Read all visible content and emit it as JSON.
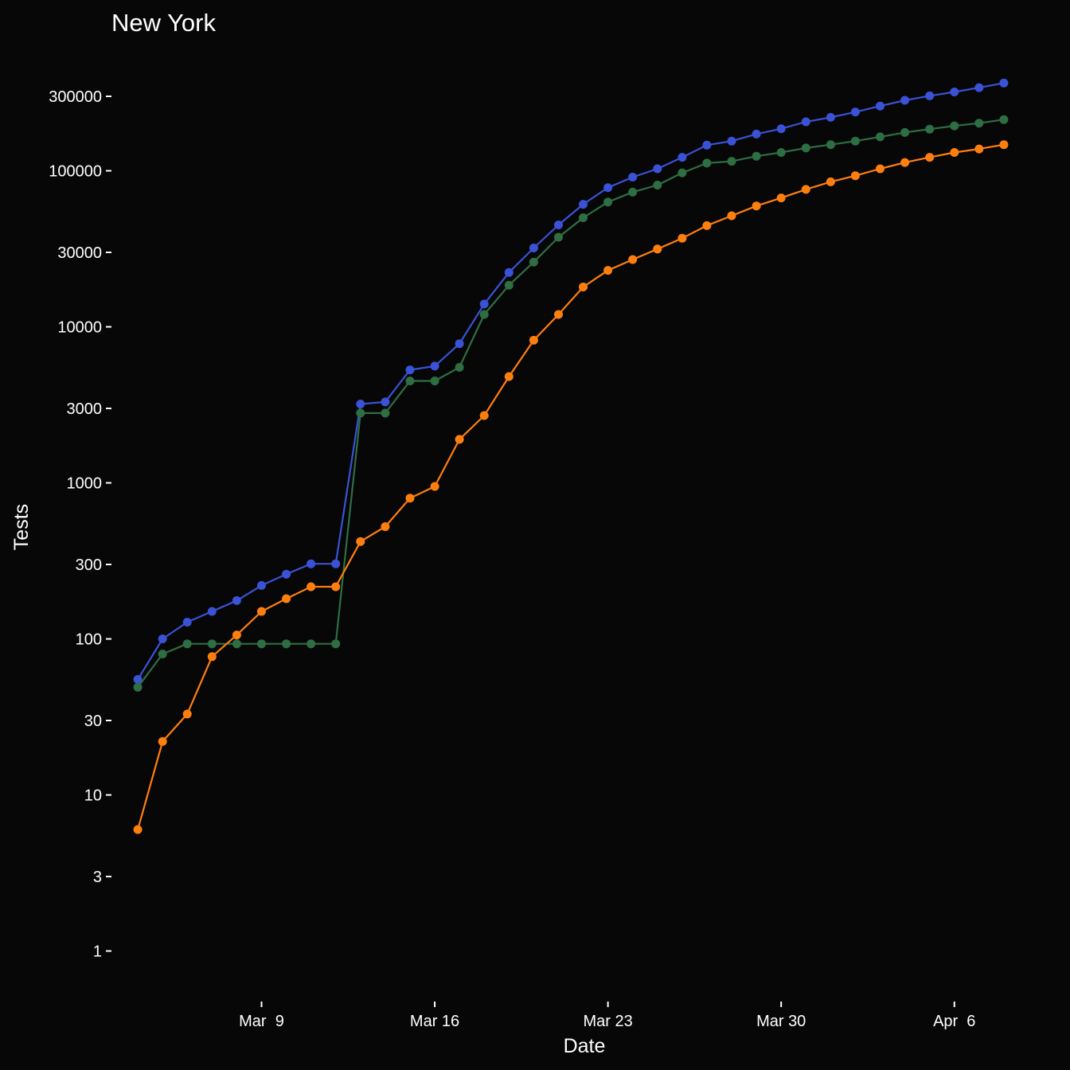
{
  "chart_data": {
    "type": "line",
    "title": "New York",
    "xlabel": "Date",
    "ylabel": "Tests",
    "yscale": "log",
    "ylim": [
      0.6,
      600000
    ],
    "xlim": [
      "2020-03-03",
      "2020-04-09"
    ],
    "y_ticks": [
      {
        "value": 1,
        "label": "1"
      },
      {
        "value": 3,
        "label": "3"
      },
      {
        "value": 10,
        "label": "10"
      },
      {
        "value": 30,
        "label": "30"
      },
      {
        "value": 100,
        "label": "100"
      },
      {
        "value": 300,
        "label": "300"
      },
      {
        "value": 1000,
        "label": "1000"
      },
      {
        "value": 3000,
        "label": "3000"
      },
      {
        "value": 10000,
        "label": "10000"
      },
      {
        "value": 30000,
        "label": "30000"
      },
      {
        "value": 100000,
        "label": "100000"
      },
      {
        "value": 300000,
        "label": "300000"
      }
    ],
    "x_ticks": [
      {
        "value": "2020-03-09",
        "label": "Mar  9"
      },
      {
        "value": "2020-03-16",
        "label": "Mar 16"
      },
      {
        "value": "2020-03-23",
        "label": "Mar 23"
      },
      {
        "value": "2020-03-30",
        "label": "Mar 30"
      },
      {
        "value": "2020-04-06",
        "label": "Apr  6"
      }
    ],
    "grid": false,
    "legend": "none",
    "x": [
      "2020-03-04",
      "2020-03-05",
      "2020-03-06",
      "2020-03-07",
      "2020-03-08",
      "2020-03-09",
      "2020-03-10",
      "2020-03-11",
      "2020-03-12",
      "2020-03-13",
      "2020-03-14",
      "2020-03-15",
      "2020-03-16",
      "2020-03-17",
      "2020-03-18",
      "2020-03-19",
      "2020-03-20",
      "2020-03-21",
      "2020-03-22",
      "2020-03-23",
      "2020-03-24",
      "2020-03-25",
      "2020-03-26",
      "2020-03-27",
      "2020-03-28",
      "2020-03-29",
      "2020-03-30",
      "2020-03-31",
      "2020-04-01",
      "2020-04-02",
      "2020-04-03",
      "2020-04-04",
      "2020-04-05",
      "2020-04-06",
      "2020-04-07",
      "2020-04-08"
    ],
    "series": [
      {
        "color": "#3a52d6",
        "values": [
          55,
          100,
          128,
          150,
          176,
          220,
          260,
          303,
          303,
          3200,
          3300,
          5300,
          5600,
          7800,
          14000,
          22300,
          32000,
          45000,
          61000,
          78000,
          91000,
          103000,
          122000,
          146000,
          155000,
          172000,
          186000,
          206000,
          220000,
          238000,
          260000,
          283000,
          302000,
          320000,
          341000,
          365000
        ]
      },
      {
        "color": "#2e6e43",
        "values": [
          49,
          80,
          93,
          93,
          93,
          93,
          93,
          93,
          93,
          2800,
          2800,
          4500,
          4500,
          5500,
          12000,
          18500,
          26000,
          37500,
          50000,
          63000,
          73000,
          81000,
          97000,
          112000,
          115000,
          124000,
          131000,
          140000,
          147000,
          155000,
          165000,
          176000,
          185000,
          194000,
          202000,
          213000
        ]
      },
      {
        "color": "#ff7f0e",
        "values": [
          6,
          22,
          33,
          77,
          106,
          150,
          181,
          216,
          216,
          421,
          524,
          798,
          949,
          1900,
          2700,
          4800,
          8200,
          12000,
          18000,
          23000,
          27000,
          31500,
          37000,
          44500,
          51500,
          59500,
          67000,
          76000,
          85000,
          93000,
          103000,
          113000,
          122000,
          131000,
          138000,
          147000
        ]
      }
    ]
  }
}
